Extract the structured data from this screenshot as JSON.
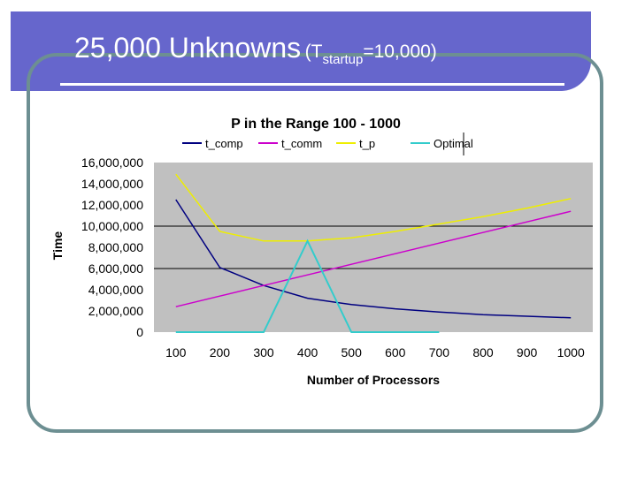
{
  "slide": {
    "title_main": "25,000 Unknowns",
    "title_paren_open": "(T",
    "title_subscript": "startup",
    "title_paren_close": "=10,000)"
  },
  "colors": {
    "title_band": "#6666cc",
    "frame": "#6d8f92",
    "plot_bg": "#c0c0c0"
  },
  "chart_data": {
    "type": "line",
    "title": "P in the Range 100 - 1000",
    "xlabel": "Number of Processors",
    "ylabel": "Time",
    "categories": [
      "100",
      "200",
      "300",
      "400",
      "500",
      "600",
      "700",
      "800",
      "900",
      "1000"
    ],
    "ylim": [
      0,
      16000000
    ],
    "ytick_labels": [
      "0",
      "2,000,000",
      "4,000,000",
      "6,000,000",
      "8,000,000",
      "10,000,000",
      "12,000,000",
      "14,000,000",
      "16,000,000"
    ],
    "grid": "horizontal at 10,000,000 and 6,000,000",
    "legend_position": "top",
    "series": [
      {
        "name": "t_comp",
        "color": "#000080",
        "values": [
          12500000,
          6100000,
          4400000,
          3200000,
          2600000,
          2200000,
          1900000,
          1650000,
          1500000,
          1350000
        ]
      },
      {
        "name": "t_comm",
        "color": "#cc00cc",
        "values": [
          2400000,
          3400000,
          4400000,
          5400000,
          6400000,
          7400000,
          8400000,
          9400000,
          10400000,
          11400000
        ]
      },
      {
        "name": "t_p",
        "color": "#eeee00",
        "values": [
          14900000,
          9500000,
          8600000,
          8600000,
          8900000,
          9500000,
          10200000,
          10900000,
          11700000,
          12600000
        ]
      },
      {
        "name": "Optimal",
        "color": "#33cccc",
        "values": [
          0,
          0,
          0,
          8600000,
          0,
          0,
          0,
          null,
          null,
          null
        ]
      }
    ]
  }
}
